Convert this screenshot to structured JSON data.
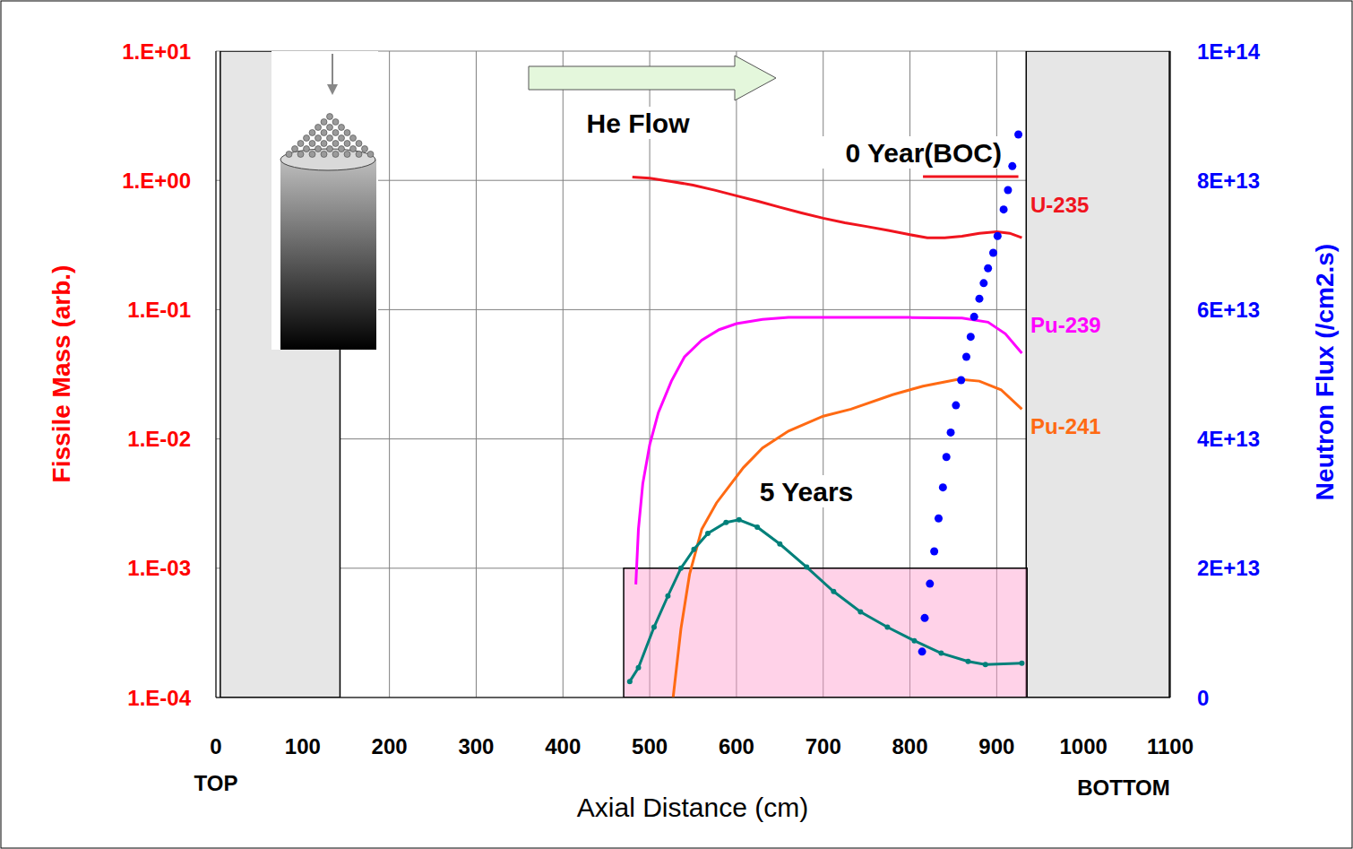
{
  "chart_data": {
    "type": "line",
    "xlabel": "Axial Distance (cm)",
    "ylabel": "Fissile Mass (arb.)",
    "y2label": "Neutron Flux (/cm2.s)",
    "annotations": [
      "He Flow",
      "TOP",
      "BOTTOM"
    ],
    "xlim": [
      0,
      1100
    ],
    "xticks": [
      0,
      100,
      200,
      300,
      400,
      500,
      600,
      700,
      800,
      900,
      1000,
      1100
    ],
    "ylim": [
      0.0001,
      10
    ],
    "yticks": [
      {
        "value": 0.0001,
        "label": "1.E-04"
      },
      {
        "value": 0.001,
        "label": "1.E-03"
      },
      {
        "value": 0.01,
        "label": "1.E-02"
      },
      {
        "value": 0.1,
        "label": "1.E-01"
      },
      {
        "value": 1,
        "label": "1.E+00"
      },
      {
        "value": 10,
        "label": "1.E+01"
      }
    ],
    "y2lim": [
      0,
      100000000000000.0
    ],
    "y2ticks": [
      0,
      {
        "value": 20000000000000.0,
        "label": "2E+13"
      },
      {
        "value": 40000000000000.0,
        "label": "4E+13"
      },
      {
        "value": 60000000000000.0,
        "label": "6E+13"
      },
      {
        "value": 80000000000000.0,
        "label": "8E+13"
      },
      {
        "value": 100000000000000.0,
        "label": "1E+14"
      }
    ],
    "log": "y",
    "grid": true,
    "series": [
      {
        "name": "U-235",
        "color": "#f0141e",
        "marker": "none",
        "line_style": "solid",
        "x": [
          480,
          500,
          525,
          550,
          575,
          600,
          625,
          650,
          675,
          700,
          725,
          750,
          775,
          800,
          820,
          840,
          860,
          880,
          900,
          915,
          929
        ],
        "values": [
          1.06,
          1.04,
          0.98,
          0.92,
          0.84,
          0.76,
          0.69,
          0.62,
          0.56,
          0.51,
          0.47,
          0.44,
          0.41,
          0.38,
          0.36,
          0.36,
          0.37,
          0.39,
          0.4,
          0.39,
          0.36
        ]
      },
      {
        "name": "Pu-239",
        "color": "#ff00ff",
        "marker": "none",
        "line_style": "solid",
        "x": [
          484,
          487,
          492,
          500,
          510,
          525,
          540,
          560,
          580,
          600,
          630,
          660,
          700,
          750,
          800,
          860,
          890,
          910,
          929
        ],
        "values": [
          0.00075,
          0.002,
          0.0045,
          0.009,
          0.016,
          0.028,
          0.043,
          0.058,
          0.07,
          0.078,
          0.084,
          0.087,
          0.087,
          0.087,
          0.087,
          0.086,
          0.08,
          0.065,
          0.046
        ]
      },
      {
        "name": "Pu-241",
        "color": "#ff6a13",
        "marker": "none",
        "line_style": "solid",
        "x": [
          527,
          536,
          546,
          560,
          577,
          608,
          630,
          660,
          700,
          732,
          780,
          815,
          856,
          880,
          905,
          929
        ],
        "values": [
          0.0001,
          0.00034,
          0.0009,
          0.002,
          0.0032,
          0.006,
          0.0085,
          0.0115,
          0.015,
          0.017,
          0.022,
          0.0256,
          0.029,
          0.028,
          0.024,
          0.017
        ]
      },
      {
        "name": "5 Years",
        "color": "#00807a",
        "marker": "circle",
        "line_style": "solid",
        "x": [
          477,
          487,
          505,
          521,
          536,
          551,
          567,
          588,
          603,
          624,
          650,
          681,
          712,
          743,
          774,
          805,
          836,
          867,
          887,
          929
        ],
        "values": [
          0.000133,
          0.00017,
          0.00035,
          0.00061,
          0.001,
          0.0014,
          0.00186,
          0.00226,
          0.00237,
          0.00208,
          0.00154,
          0.00102,
          0.00066,
          0.00046,
          0.00035,
          0.000275,
          0.00022,
          0.00019,
          0.00018,
          0.000184
        ]
      },
      {
        "name": "0 Year(BOC)",
        "color": "#f0141e",
        "marker": "none",
        "line_style": "solid",
        "x": [
          815,
          925
        ],
        "values": [
          1.07,
          1.07
        ]
      },
      {
        "color": "#0000ff",
        "marker": "circle",
        "line_style": "none",
        "axis": "y2",
        "x": [
          814,
          817,
          823,
          828,
          833,
          838,
          842,
          847,
          853,
          859,
          865,
          870,
          874,
          880,
          885,
          890,
          896,
          901,
          908,
          913,
          918,
          925
        ],
        "values": [
          7100000000000.0,
          12300000000000.0,
          17600000000000.0,
          22600000000000.0,
          27700000000000.0,
          32500000000000.0,
          37200000000000.0,
          41000000000000.0,
          45200000000000.0,
          49100000000000.0,
          52700000000000.0,
          55800000000000.0,
          58900000000000.0,
          61700000000000.0,
          64100000000000.0,
          66400000000000.0,
          68800000000000.0,
          71400000000000.0,
          75500000000000.0,
          78500000000000.0,
          82200000000000.0,
          87100000000000.0
        ]
      }
    ],
    "bands": [
      {
        "x": [
          5,
          143
        ],
        "y": [
          0.0001,
          10
        ],
        "color": "#e6e6e6"
      },
      {
        "x": [
          934,
          1099
        ],
        "y": [
          0.0001,
          10
        ],
        "color": "#e6e6e6"
      },
      {
        "x": [
          470,
          935
        ],
        "y": [
          0.0001,
          0.001
        ],
        "color": "#ff9ccc"
      }
    ]
  }
}
